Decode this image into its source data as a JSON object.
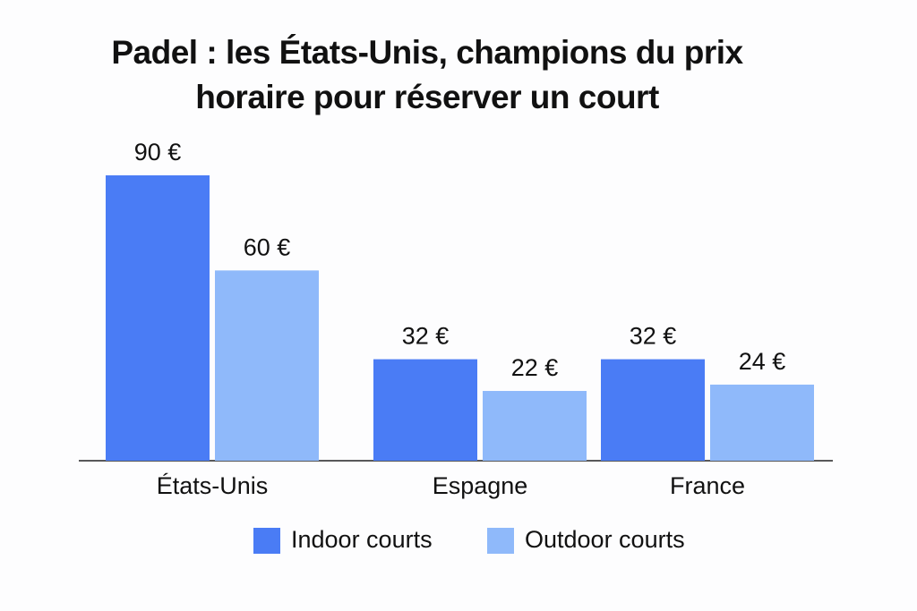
{
  "chart_data": {
    "type": "bar",
    "title": "Padel : les États-Unis, champions du prix horaire pour réserver un court",
    "categories": [
      "États-Unis",
      "Espagne",
      "France"
    ],
    "series": [
      {
        "name": "Indoor courts",
        "color": "#4a7cf5",
        "values": [
          90,
          32,
          32
        ],
        "value_labels": [
          "90 €",
          "32 €",
          "32 €"
        ]
      },
      {
        "name": "Outdoor courts",
        "color": "#8fb9fa",
        "values": [
          60,
          22,
          24
        ],
        "value_labels": [
          "60 €",
          "22 €",
          "24 €"
        ]
      }
    ]
  }
}
